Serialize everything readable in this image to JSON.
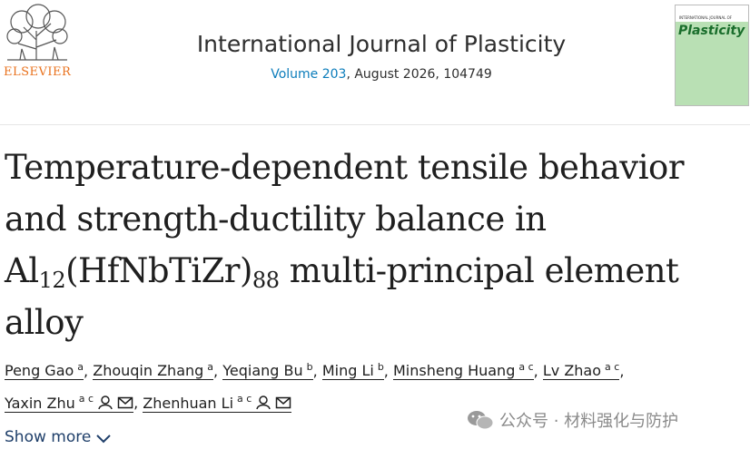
{
  "header": {
    "publisher": "ELSEVIER",
    "journal": "International Journal of Plasticity",
    "volume": "Volume 203",
    "issue_info": ", August 2026, 104749",
    "cover": {
      "top": "INTERNATIONAL JOURNAL OF",
      "title": "Plasticity"
    }
  },
  "title": {
    "parts": [
      "Temperature-dependent tensile behavior",
      "and strength-ductility balance in",
      "Al",
      "12",
      "(HfNbTiZr)",
      "88",
      " multi-principal element",
      "alloy"
    ]
  },
  "authors": {
    "separator": ",",
    "list": [
      {
        "name": "Peng Gao",
        "aff": "a",
        "corresponding": false
      },
      {
        "name": "Zhouqin Zhang",
        "aff": "a",
        "corresponding": false
      },
      {
        "name": "Yeqiang Bu",
        "aff": "b",
        "corresponding": false
      },
      {
        "name": "Ming Li",
        "aff": "b",
        "corresponding": false
      },
      {
        "name": "Minsheng Huang",
        "aff": "a c",
        "corresponding": false
      },
      {
        "name": "Lv Zhao",
        "aff": "a c",
        "corresponding": false
      },
      {
        "name": "Yaxin Zhu",
        "aff": "a c",
        "corresponding": true
      },
      {
        "name": "Zhenhuan Li",
        "aff": "a c",
        "corresponding": true
      }
    ]
  },
  "show_more": "Show more",
  "watermark": "公众号 · 材料强化与防护"
}
